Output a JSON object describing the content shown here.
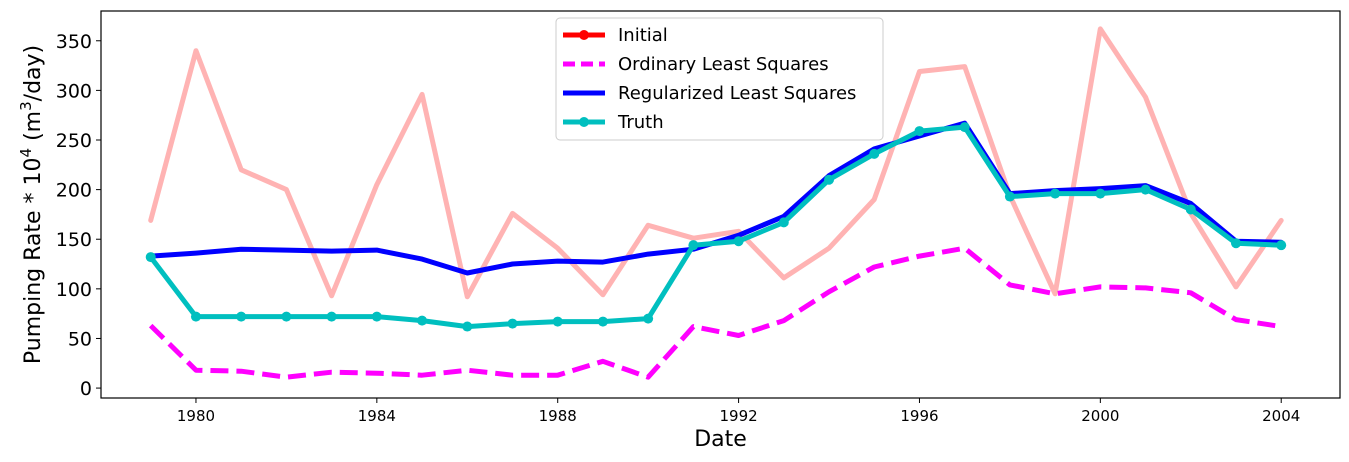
{
  "chart_data": {
    "type": "line",
    "xlabel": "Date",
    "ylabel_prefix": "Pumping Rate * 10",
    "ylabel_exp": "4",
    "ylabel_unit_open": " (m",
    "ylabel_unit_exp": "3",
    "ylabel_unit_close": "/day)",
    "xlim": [
      1977.9,
      2005.3
    ],
    "ylim": [
      -10,
      380
    ],
    "xticks": [
      1980,
      1984,
      1988,
      1992,
      1996,
      2000,
      2004
    ],
    "xtick_labels": [
      "1980",
      "1984",
      "1988",
      "1992",
      "1996",
      "2000",
      "2004"
    ],
    "yticks": [
      0,
      50,
      100,
      150,
      200,
      250,
      300,
      350
    ],
    "ytick_labels": [
      "0",
      "50",
      "100",
      "150",
      "200",
      "250",
      "300",
      "350"
    ],
    "legend_position": "top-center",
    "legend_entries": [
      "Initial",
      "Ordinary Least Squares",
      "Regularized Least Squares",
      "Truth"
    ],
    "x": [
      1979,
      1980,
      1981,
      1982,
      1983,
      1984,
      1985,
      1986,
      1987,
      1988,
      1989,
      1990,
      1991,
      1992,
      1993,
      1994,
      1995,
      1996,
      1997,
      1998,
      1999,
      2000,
      2001,
      2002,
      2003,
      2004
    ],
    "series": [
      {
        "name": "Initial",
        "color": "#ffb3b3",
        "legend_color": "#ff0000",
        "style": "solid",
        "markers": false,
        "values": [
          169,
          340,
          220,
          200,
          93,
          205,
          296,
          92,
          176,
          141,
          94,
          164,
          151,
          158,
          111,
          141,
          190,
          319,
          324,
          194,
          95,
          362,
          293,
          176,
          102,
          169
        ]
      },
      {
        "name": "Ordinary Least Squares",
        "color": "#ff00ff",
        "style": "dashed",
        "markers": false,
        "values": [
          63,
          18,
          17,
          11,
          16,
          15,
          13,
          18,
          13,
          13,
          27,
          11,
          62,
          53,
          68,
          97,
          122,
          133,
          141,
          104,
          95,
          102,
          101,
          96,
          69,
          62
        ]
      },
      {
        "name": "Regularized Least Squares",
        "color": "#0000ff",
        "style": "solid",
        "markers": false,
        "values": [
          133,
          136,
          140,
          139,
          138,
          139,
          130,
          116,
          125,
          128,
          127,
          135,
          140,
          154,
          173,
          214,
          241,
          254,
          267,
          196,
          199,
          201,
          204,
          186,
          148,
          147
        ]
      },
      {
        "name": "Truth",
        "color": "#00bfbf",
        "style": "solid",
        "markers": true,
        "values": [
          132,
          72,
          72,
          72,
          72,
          72,
          68,
          62,
          65,
          67,
          67,
          70,
          144,
          148,
          167,
          210,
          236,
          259,
          263,
          193,
          196,
          196,
          200,
          180,
          146,
          144
        ]
      }
    ]
  }
}
